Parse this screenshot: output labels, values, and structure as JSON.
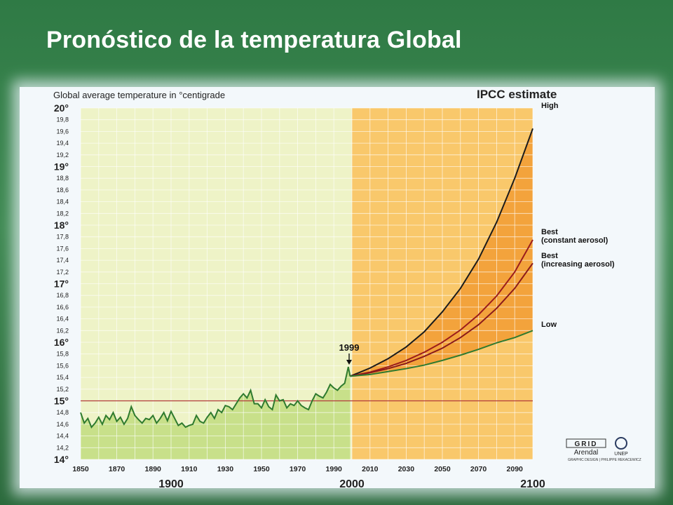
{
  "slide": {
    "title": "Pronóstico de la temperatura Global"
  },
  "chart_data": {
    "type": "line",
    "title": "IPCC estimate",
    "ylabel": "Global average temperature in °centigrade",
    "ylim": [
      14,
      20
    ],
    "xlim": [
      1850,
      2100
    ],
    "y_major_ticks": [
      "14°",
      "15°",
      "16°",
      "17°",
      "18°",
      "19°",
      "20°"
    ],
    "y_minor_ticks": [
      "14,2",
      "14,4",
      "14,6",
      "14,8",
      "15,2",
      "15,4",
      "15,6",
      "15,8",
      "16,2",
      "16,4",
      "16,6",
      "16,8",
      "17,2",
      "17,4",
      "17,6",
      "17,8",
      "18,2",
      "18,4",
      "18,6",
      "18,8",
      "19,2",
      "19,4",
      "19,6",
      "19,8"
    ],
    "x_ticks": [
      "1850",
      "1870",
      "1890",
      "1910",
      "1930",
      "1950",
      "1970",
      "1990",
      "2010",
      "2030",
      "2050",
      "2070",
      "2090"
    ],
    "century_labels": [
      "1900",
      "2000",
      "2100"
    ],
    "reference_line": 15.0,
    "grid": true,
    "annotation": {
      "label": "1999",
      "x": 1999,
      "y": 15.6
    },
    "observed": {
      "x": [
        1850,
        1852,
        1854,
        1856,
        1858,
        1860,
        1862,
        1864,
        1866,
        1868,
        1870,
        1872,
        1874,
        1876,
        1878,
        1880,
        1882,
        1884,
        1886,
        1888,
        1890,
        1892,
        1894,
        1896,
        1898,
        1900,
        1902,
        1904,
        1906,
        1908,
        1910,
        1912,
        1914,
        1916,
        1918,
        1920,
        1922,
        1924,
        1926,
        1928,
        1930,
        1932,
        1934,
        1936,
        1938,
        1940,
        1942,
        1944,
        1946,
        1948,
        1950,
        1952,
        1954,
        1956,
        1958,
        1960,
        1962,
        1964,
        1966,
        1968,
        1970,
        1972,
        1974,
        1976,
        1978,
        1980,
        1982,
        1984,
        1986,
        1988,
        1990,
        1992,
        1994,
        1996,
        1998,
        1999
      ],
      "y": [
        14.8,
        14.62,
        14.7,
        14.55,
        14.62,
        14.72,
        14.6,
        14.75,
        14.68,
        14.8,
        14.65,
        14.72,
        14.6,
        14.7,
        14.9,
        14.75,
        14.68,
        14.62,
        14.7,
        14.68,
        14.75,
        14.62,
        14.7,
        14.8,
        14.66,
        14.82,
        14.7,
        14.58,
        14.62,
        14.55,
        14.58,
        14.6,
        14.75,
        14.65,
        14.62,
        14.72,
        14.8,
        14.7,
        14.85,
        14.8,
        14.92,
        14.9,
        14.85,
        14.95,
        15.05,
        15.12,
        15.05,
        15.18,
        14.95,
        14.95,
        14.88,
        15.02,
        14.9,
        14.85,
        15.1,
        15.0,
        15.02,
        14.88,
        14.95,
        14.92,
        15.0,
        14.92,
        14.88,
        14.85,
        15.0,
        15.12,
        15.08,
        15.05,
        15.15,
        15.28,
        15.22,
        15.18,
        15.25,
        15.3,
        15.58,
        15.42
      ]
    },
    "series": [
      {
        "name": "High",
        "x": [
          1999,
          2010,
          2020,
          2030,
          2040,
          2050,
          2060,
          2070,
          2080,
          2090,
          2100
        ],
        "y": [
          15.42,
          15.56,
          15.72,
          15.92,
          16.18,
          16.52,
          16.92,
          17.42,
          18.05,
          18.8,
          19.65
        ],
        "color": "#1b1b1b"
      },
      {
        "name": "Best\n(constant aerosol)",
        "x": [
          1999,
          2010,
          2020,
          2030,
          2040,
          2050,
          2060,
          2070,
          2080,
          2090,
          2100
        ],
        "y": [
          15.42,
          15.49,
          15.58,
          15.69,
          15.83,
          16.0,
          16.21,
          16.47,
          16.79,
          17.2,
          17.75
        ],
        "color": "#9b1c1c"
      },
      {
        "name": "Best\n(increasing aerosol)",
        "x": [
          1999,
          2010,
          2020,
          2030,
          2040,
          2050,
          2060,
          2070,
          2080,
          2090,
          2100
        ],
        "y": [
          15.42,
          15.48,
          15.55,
          15.64,
          15.76,
          15.9,
          16.08,
          16.3,
          16.58,
          16.92,
          17.35
        ],
        "color": "#8a1a1a"
      },
      {
        "name": "Low",
        "x": [
          1999,
          2010,
          2020,
          2030,
          2040,
          2050,
          2060,
          2070,
          2080,
          2090,
          2100
        ],
        "y": [
          15.42,
          15.45,
          15.5,
          15.55,
          15.61,
          15.69,
          15.78,
          15.88,
          15.99,
          16.08,
          16.2
        ],
        "color": "#2f7a2f"
      }
    ],
    "colors": {
      "plot_background": "#eef3c7",
      "observed_fill": "#c8e08a",
      "observed_line": "#2e7a2e",
      "forecast_fill": "#f9c86b",
      "forecast_band": "#f3a33c",
      "reference_line": "#b23a3a"
    }
  },
  "logos": {
    "grid": "GRID",
    "arendal": "Arendal",
    "unep": "UNEP",
    "credit": "GRAPHIC DESIGN | PHILIPPE REKACEWICZ"
  }
}
